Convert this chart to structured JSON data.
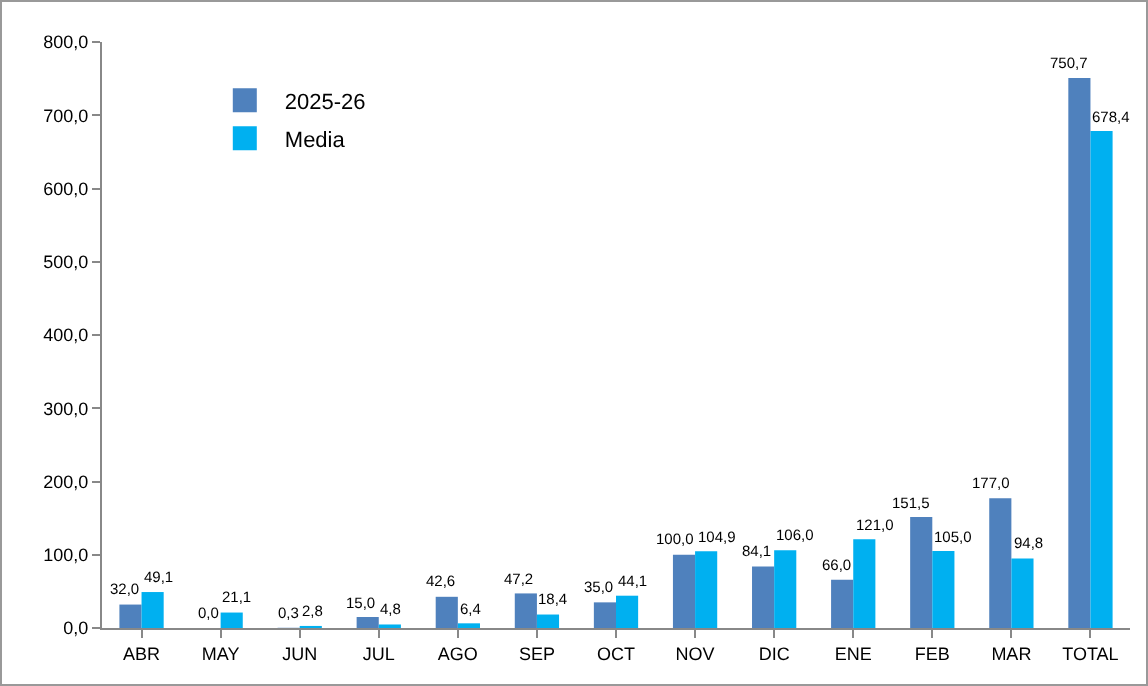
{
  "chart_data": {
    "type": "bar",
    "categories": [
      "ABR",
      "MAY",
      "JUN",
      "JUL",
      "AGO",
      "SEP",
      "OCT",
      "NOV",
      "DIC",
      "ENE",
      "FEB",
      "MAR",
      "TOTAL"
    ],
    "series": [
      {
        "name": "2025-26",
        "color": "#4f81bd",
        "values": [
          32.0,
          0.0,
          0.3,
          15.0,
          42.6,
          47.2,
          35.0,
          100.0,
          84.1,
          66.0,
          151.5,
          177.0,
          750.7
        ],
        "value_labels": [
          "32,0",
          "0,0",
          "0,3",
          "15,0",
          "42,6",
          "47,2",
          "35,0",
          "100,0",
          "84,1",
          "66,0",
          "151,5",
          "177,0",
          "750,7"
        ]
      },
      {
        "name": "Media",
        "color": "#00b0f0",
        "values": [
          49.1,
          21.1,
          2.8,
          4.8,
          6.4,
          18.4,
          44.1,
          104.9,
          106.0,
          121.0,
          105.0,
          94.8,
          678.4
        ],
        "value_labels": [
          "49,1",
          "21,1",
          "2,8",
          "4,8",
          "6,4",
          "18,4",
          "44,1",
          "104,9",
          "106,0",
          "121,0",
          "105,0",
          "94,8",
          "678,4"
        ]
      }
    ],
    "ylim": [
      0,
      800
    ],
    "yticks": [
      {
        "value": 0,
        "label": "0,0"
      },
      {
        "value": 100,
        "label": "100,0"
      },
      {
        "value": 200,
        "label": "200,0"
      },
      {
        "value": 300,
        "label": "300,0"
      },
      {
        "value": 400,
        "label": "400,0"
      },
      {
        "value": 500,
        "label": "500,0"
      },
      {
        "value": 600,
        "label": "600,0"
      },
      {
        "value": 700,
        "label": "700,0"
      },
      {
        "value": 800,
        "label": "800,0"
      }
    ],
    "grid": false,
    "legend": "top left"
  }
}
